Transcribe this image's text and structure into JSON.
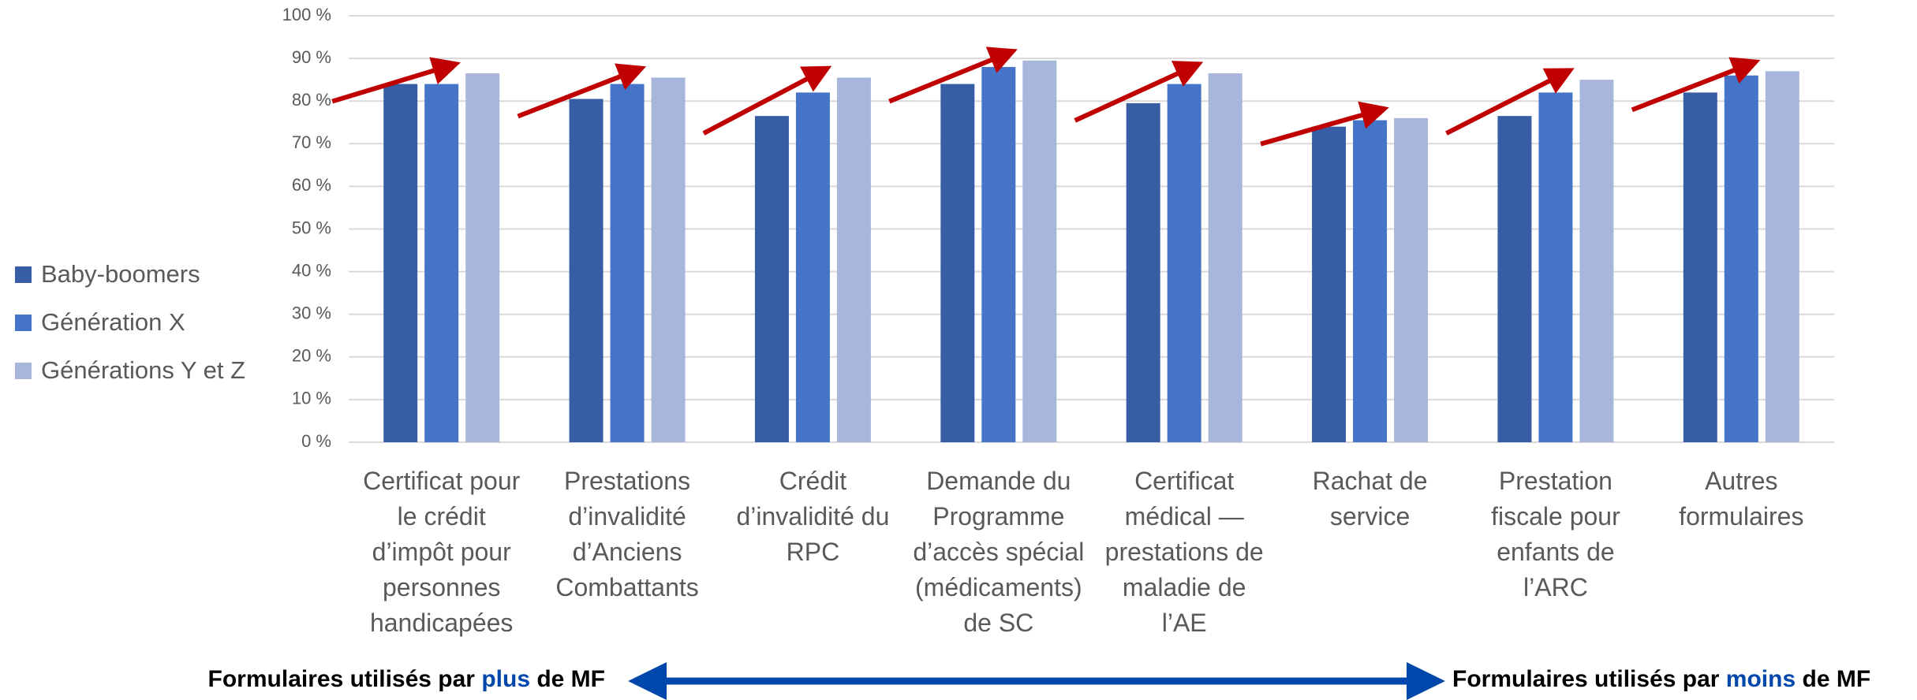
{
  "chart_data": {
    "type": "bar",
    "categories": [
      "Certificat pour le crédit d’impôt pour personnes handicapées",
      "Prestations d’invalidité d’Anciens Combattants",
      "Crédit d’invalidité du RPC",
      "Demande du Programme d’accès spécial (médicaments) de SC",
      "Certificat médical — prestations de maladie de l’AE",
      "Rachat de service",
      "Prestation fiscale pour enfants de l’ARC",
      "Autres formulaires"
    ],
    "series": [
      {
        "name": "Baby-boomers",
        "color": "#375ea5",
        "values": [
          84,
          80.5,
          76.5,
          84,
          79.5,
          74,
          76.5,
          82
        ]
      },
      {
        "name": "Génération X",
        "color": "#4674c8",
        "values": [
          84,
          84,
          82,
          88,
          84,
          75.5,
          82,
          86
        ]
      },
      {
        "name": "Générations Y et Z",
        "color": "#a9b6dc",
        "values": [
          86.5,
          85.5,
          85.5,
          89.5,
          86.5,
          76,
          85,
          87
        ]
      }
    ],
    "ylim": [
      0,
      100
    ],
    "yticks": [
      {
        "value": 0,
        "label": "0 %"
      },
      {
        "value": 10,
        "label": "10 %"
      },
      {
        "value": 20,
        "label": "20 %"
      },
      {
        "value": 30,
        "label": "30 %"
      },
      {
        "value": 40,
        "label": "40 %"
      },
      {
        "value": 50,
        "label": "50 %"
      },
      {
        "value": 60,
        "label": "60 %"
      },
      {
        "value": 70,
        "label": "70 %"
      },
      {
        "value": 80,
        "label": "80 %"
      },
      {
        "value": 90,
        "label": "90 %"
      },
      {
        "value": 100,
        "label": "100 %"
      }
    ],
    "grid": true,
    "legend": "left",
    "annotations": {
      "left": {
        "before": "Formulaires utilisés par ",
        "highlight": "plus",
        "after": " de MF"
      },
      "right": {
        "before": "Formulaires utilisés par ",
        "highlight": "moins",
        "after": " de MF"
      }
    }
  }
}
